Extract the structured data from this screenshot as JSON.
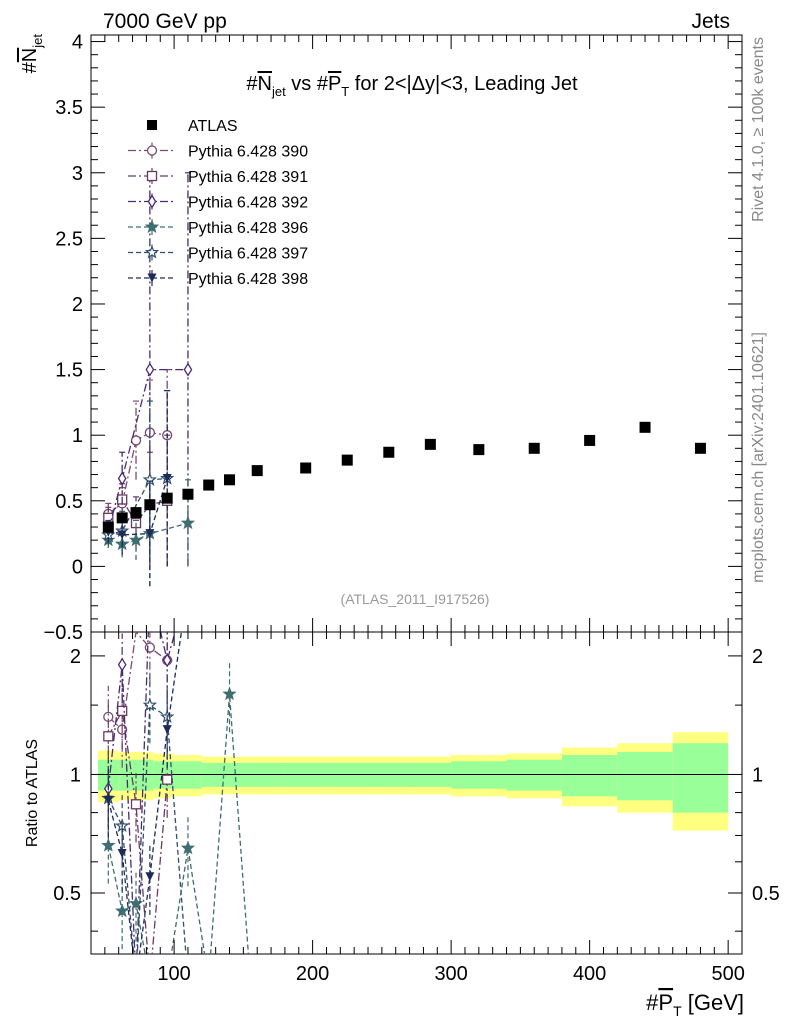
{
  "header": {
    "left": "7000 GeV pp",
    "right": "Jets",
    "side_top": "Rivet 4.1.0, ≥ 100k events",
    "side_bottom": "mcplots.cern.ch [arXiv:2401.10621]"
  },
  "chart_data": [
    {
      "panel": "main",
      "type": "scatter",
      "title": "#N_jet vs #P_T for 2<|Δy|<3, Leading Jet",
      "ylabel": "#N_jet",
      "xlim": [
        40,
        510
      ],
      "ylim": [
        -0.5,
        4.05
      ],
      "yticks": [
        -0.5,
        0,
        0.5,
        1,
        1.5,
        2,
        2.5,
        3,
        3.5,
        4
      ],
      "ytick_labels": [
        "−0.5",
        "0",
        "0.5",
        "1",
        "1.5",
        "2",
        "2.5",
        "3",
        "3.5",
        "4"
      ],
      "watermark": "(ATLAS_2011_I917526)",
      "series": [
        {
          "name": "ATLAS",
          "color": "#000000",
          "marker": "square",
          "x": [
            52.5,
            62.5,
            72.5,
            82.5,
            95,
            110,
            125,
            140,
            160,
            195,
            225,
            255,
            285,
            320,
            360,
            400,
            440,
            480
          ],
          "y": [
            0.3,
            0.37,
            0.41,
            0.47,
            0.52,
            0.55,
            0.62,
            0.66,
            0.73,
            0.75,
            0.81,
            0.87,
            0.93,
            0.89,
            0.9,
            0.96,
            1.06,
            0.9
          ]
        },
        {
          "name": "Pythia 6.428 390",
          "color": "#7a4a72",
          "marker": "circle",
          "dash": "8,3,2,3",
          "x": [
            52.5,
            62.5,
            72.5,
            82.5,
            95
          ],
          "y": [
            0.4,
            0.48,
            0.96,
            1.02,
            1.0
          ],
          "err": [
            0.08,
            0.12,
            0.3,
            0.4,
            0.5
          ]
        },
        {
          "name": "Pythia 6.428 391",
          "color": "#6a3a62",
          "marker": "square-open",
          "dash": "8,3,2,3",
          "x": [
            52.5,
            62.5,
            72.5,
            82.5,
            95
          ],
          "y": [
            0.37,
            0.51,
            0.33,
            0.47,
            0.5
          ],
          "err": [
            0.08,
            0.12,
            0.2,
            0.4,
            0.5
          ]
        },
        {
          "name": "Pythia 6.428 392",
          "color": "#4a2a72",
          "marker": "diamond",
          "dash": "8,3,2,3",
          "x": [
            52.5,
            62.5,
            82.5,
            110
          ],
          "y": [
            0.27,
            0.67,
            1.5,
            1.5
          ],
          "err": [
            0.08,
            0.2,
            1.5,
            1.5
          ]
        },
        {
          "name": "Pythia 6.428 396",
          "color": "#3e6e70",
          "marker": "star",
          "dash": "5,3",
          "x": [
            52.5,
            62.5,
            72.5,
            82.5,
            110
          ],
          "y": [
            0.2,
            0.17,
            0.2,
            0.25,
            0.33
          ],
          "err": [
            0.06,
            0.1,
            0.15,
            0.4,
            0.33
          ]
        },
        {
          "name": "Pythia 6.428 397",
          "color": "#2e4e6a",
          "marker": "star-open",
          "dash": "5,3",
          "x": [
            52.5,
            62.5,
            82.5,
            95
          ],
          "y": [
            0.24,
            0.27,
            0.66,
            0.67
          ],
          "err": [
            0.08,
            0.15,
            0.6,
            0.67
          ]
        },
        {
          "name": "Pythia 6.428 398",
          "color": "#1e2a5a",
          "marker": "triangle-down",
          "dash": "5,3",
          "x": [
            52.5,
            62.5,
            82.5,
            95
          ],
          "y": [
            0.26,
            0.24,
            0.25,
            0.67
          ],
          "err": [
            0.08,
            0.15,
            0.4,
            0.67
          ]
        }
      ]
    },
    {
      "panel": "ratio",
      "type": "line",
      "ylabel": "Ratio to ATLAS",
      "xlabel": "#P_T [GeV]",
      "xlim": [
        40,
        510
      ],
      "ylim": [
        0.35,
        2.3
      ],
      "yscale": "log",
      "yticks": [
        0.5,
        1,
        2
      ],
      "ytick_labels": [
        "0.5",
        "1",
        "2"
      ],
      "xticks": [
        100,
        200,
        300,
        400,
        500
      ],
      "xtick_labels": [
        "100",
        "200",
        "300",
        "400",
        "500"
      ],
      "band_edges": [
        45,
        60,
        85,
        100,
        120,
        140,
        180,
        210,
        240,
        270,
        300,
        340,
        380,
        420,
        460,
        500
      ],
      "band_inner": [
        0.09,
        0.09,
        0.08,
        0.08,
        0.07,
        0.07,
        0.07,
        0.07,
        0.07,
        0.07,
        0.08,
        0.09,
        0.12,
        0.14,
        0.2
      ],
      "band_outer": [
        0.15,
        0.14,
        0.13,
        0.12,
        0.11,
        0.11,
        0.11,
        0.11,
        0.11,
        0.11,
        0.12,
        0.13,
        0.17,
        0.2,
        0.28
      ],
      "series": [
        {
          "name": "Pythia 6.428 390",
          "x": [
            52.5,
            62.5,
            72.5,
            82.5,
            95
          ],
          "y": [
            1.4,
            1.3,
            2.3,
            2.1,
            1.95
          ]
        },
        {
          "name": "Pythia 6.428 391",
          "x": [
            52.5,
            62.5,
            72.5,
            82.5,
            95
          ],
          "y": [
            1.25,
            1.45,
            0.84,
            0.3,
            0.97
          ]
        },
        {
          "name": "Pythia 6.428 392",
          "x": [
            52.5,
            62.5,
            72.5,
            82.5,
            95,
            110
          ],
          "y": [
            0.92,
            1.9,
            0.3,
            3.0,
            1.95,
            3.0
          ]
        },
        {
          "name": "Pythia 6.428 396",
          "x": [
            52.5,
            62.5,
            72.5,
            82.5,
            95,
            110,
            125,
            140,
            155
          ],
          "y": [
            0.66,
            0.45,
            0.47,
            0.3,
            0.3,
            0.65,
            0.3,
            1.6,
            0.3
          ]
        },
        {
          "name": "Pythia 6.428 397",
          "x": [
            52.5,
            62.5,
            72.5,
            82.5,
            95,
            110
          ],
          "y": [
            0.87,
            0.74,
            0.3,
            1.5,
            1.4,
            0.3
          ]
        },
        {
          "name": "Pythia 6.428 398",
          "x": [
            52.5,
            62.5,
            72.5,
            82.5,
            95,
            110
          ],
          "y": [
            0.86,
            0.63,
            0.3,
            0.55,
            1.3,
            3.0
          ]
        }
      ]
    }
  ]
}
